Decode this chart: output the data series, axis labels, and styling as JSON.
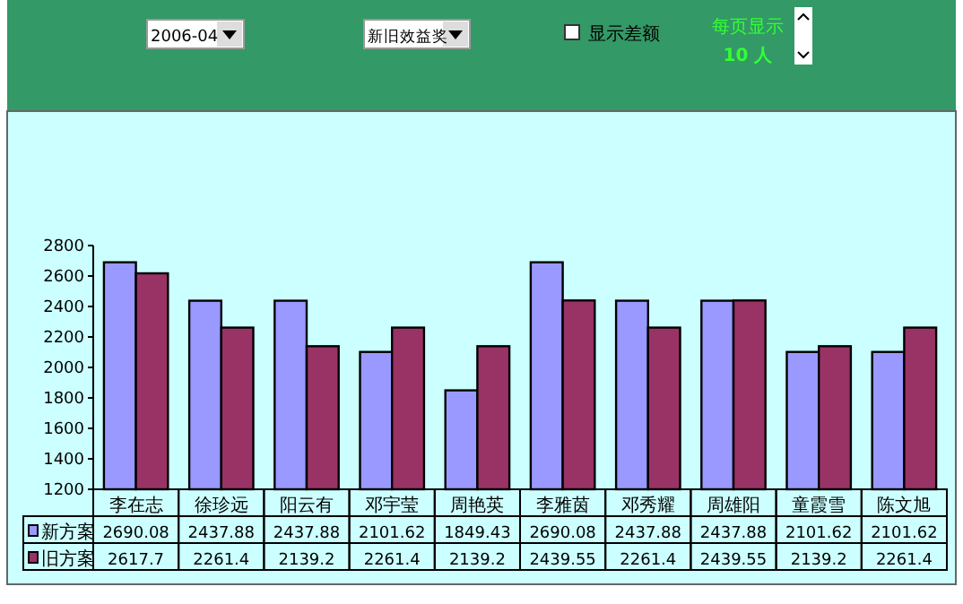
{
  "chart_data": {
    "type": "bar",
    "categories": [
      "李在志",
      "徐珍远",
      "阳云有",
      "邓宇莹",
      "周艳英",
      "李雅茵",
      "邓秀耀",
      "周雄阳",
      "童霞雪",
      "陈文旭"
    ],
    "series": [
      {
        "name": "新方案",
        "color": "#9999ff",
        "values": [
          2690.08,
          2437.88,
          2437.88,
          2101.62,
          1849.43,
          2690.08,
          2437.88,
          2437.88,
          2101.62,
          2101.62
        ]
      },
      {
        "name": "旧方案",
        "color": "#993366",
        "values": [
          2617.7,
          2261.4,
          2139.2,
          2261.4,
          2139.2,
          2439.55,
          2261.4,
          2439.55,
          2139.2,
          2261.4
        ]
      }
    ],
    "ylim": [
      1200,
      2800
    ],
    "yticks": [
      1200,
      1400,
      1600,
      1800,
      2000,
      2200,
      2400,
      2600,
      2800
    ],
    "grid": false,
    "legend": "bottom",
    "data_labels": true,
    "annotations": [
      "2006-04",
      "新旧效益奖",
      "显示差额",
      "每页显示",
      "10 人"
    ]
  }
}
